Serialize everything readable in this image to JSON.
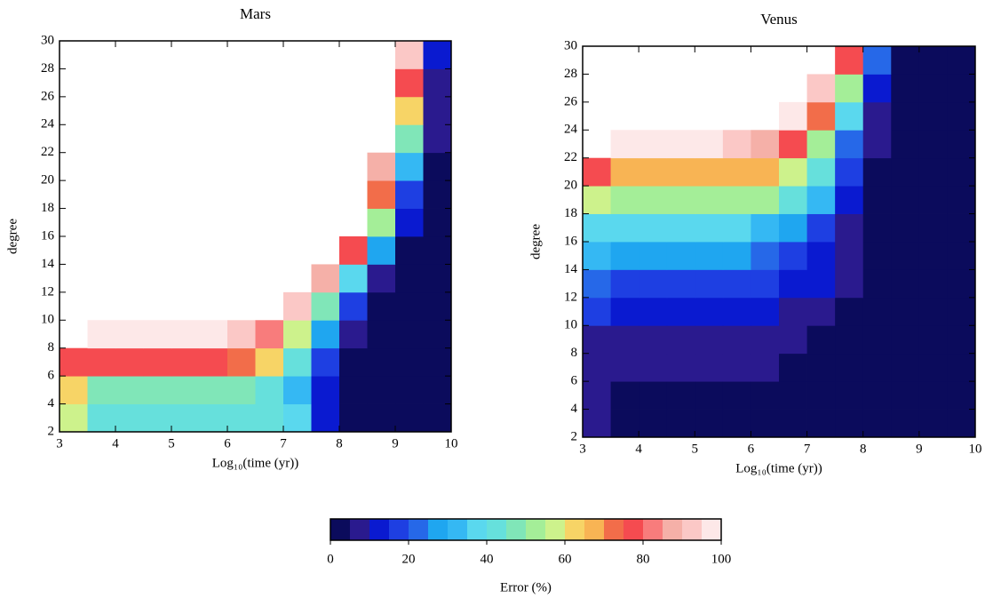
{
  "chart_data": [
    {
      "type": "heatmap",
      "title": "Mars",
      "xlabel": "Log₁₀(time (yr))",
      "ylabel": "degree",
      "x_edges": [
        3,
        3.5,
        4,
        4.5,
        5,
        5.5,
        6,
        6.5,
        7,
        7.5,
        8,
        8.5,
        9,
        9.5,
        10
      ],
      "y_edges": [
        2,
        4,
        6,
        8,
        10,
        12,
        14,
        16,
        18,
        20,
        22,
        24,
        26,
        28,
        30
      ],
      "values": [
        [
          55,
          42,
          42,
          42,
          42,
          42,
          42,
          40,
          35,
          12,
          3,
          3,
          3,
          3
        ],
        [
          62,
          48,
          48,
          48,
          48,
          48,
          48,
          44,
          30,
          10,
          3,
          3,
          3,
          3
        ],
        [
          78,
          75,
          75,
          75,
          75,
          75,
          72,
          60,
          42,
          18,
          4,
          3,
          3,
          3
        ],
        [
          null,
          97,
          97,
          97,
          97,
          97,
          92,
          82,
          55,
          28,
          8,
          3,
          3,
          3
        ],
        [
          null,
          null,
          null,
          null,
          null,
          null,
          null,
          null,
          90,
          48,
          18,
          4,
          3,
          3
        ],
        [
          null,
          null,
          null,
          null,
          null,
          null,
          null,
          null,
          null,
          85,
          38,
          9,
          3,
          3
        ],
        [
          null,
          null,
          null,
          null,
          null,
          null,
          null,
          null,
          null,
          null,
          75,
          25,
          4,
          3
        ],
        [
          null,
          null,
          null,
          null,
          null,
          null,
          null,
          null,
          null,
          null,
          null,
          50,
          10,
          3
        ],
        [
          null,
          null,
          null,
          null,
          null,
          null,
          null,
          null,
          null,
          null,
          null,
          70,
          18,
          3
        ],
        [
          null,
          null,
          null,
          null,
          null,
          null,
          null,
          null,
          null,
          null,
          null,
          88,
          30,
          4
        ],
        [
          null,
          null,
          null,
          null,
          null,
          null,
          null,
          null,
          null,
          null,
          null,
          null,
          45,
          5
        ],
        [
          null,
          null,
          null,
          null,
          null,
          null,
          null,
          null,
          null,
          null,
          null,
          null,
          60,
          6
        ],
        [
          null,
          null,
          null,
          null,
          null,
          null,
          null,
          null,
          null,
          null,
          null,
          null,
          78,
          9
        ],
        [
          null,
          null,
          null,
          null,
          null,
          null,
          null,
          null,
          null,
          null,
          null,
          null,
          92,
          14
        ]
      ],
      "xlim": [
        3,
        10
      ],
      "ylim": [
        2,
        30
      ],
      "xticks": [
        3,
        4,
        5,
        6,
        7,
        8,
        9,
        10
      ],
      "yticks": [
        2,
        4,
        6,
        8,
        10,
        12,
        14,
        16,
        18,
        20,
        22,
        24,
        26,
        28,
        30
      ]
    },
    {
      "type": "heatmap",
      "title": "Venus",
      "xlabel": "Log₁₀(time (yr))",
      "ylabel": "degree",
      "x_edges": [
        3,
        3.5,
        4,
        4.5,
        5,
        5.5,
        6,
        6.5,
        7,
        7.5,
        8,
        8.5,
        9,
        9.5,
        10
      ],
      "y_edges": [
        2,
        4,
        6,
        8,
        10,
        12,
        14,
        16,
        18,
        20,
        22,
        24,
        26,
        28,
        30
      ],
      "values": [
        [
          5,
          2,
          2,
          2,
          2,
          2,
          2,
          2,
          2,
          2,
          2,
          2,
          2,
          2
        ],
        [
          5,
          2,
          2,
          2,
          2,
          2,
          2,
          2,
          2,
          2,
          2,
          2,
          2,
          2
        ],
        [
          7,
          6,
          6,
          6,
          6,
          6,
          6,
          4,
          2,
          2,
          2,
          2,
          2,
          2
        ],
        [
          8,
          7,
          7,
          7,
          7,
          7,
          7,
          7,
          4,
          2,
          2,
          2,
          2,
          2
        ],
        [
          15,
          14,
          14,
          14,
          14,
          14,
          14,
          9,
          7,
          3,
          2,
          2,
          2,
          2
        ],
        [
          20,
          18,
          18,
          18,
          18,
          18,
          18,
          14,
          10,
          5,
          2,
          2,
          2,
          2
        ],
        [
          30,
          27,
          27,
          27,
          27,
          27,
          23,
          18,
          12,
          6,
          2,
          2,
          2,
          2
        ],
        [
          38,
          35,
          35,
          35,
          35,
          35,
          32,
          27,
          17,
          8,
          2,
          2,
          2,
          2
        ],
        [
          55,
          52,
          52,
          52,
          52,
          52,
          50,
          42,
          30,
          12,
          3,
          2,
          2,
          2
        ],
        [
          78,
          67,
          67,
          67,
          67,
          67,
          65,
          58,
          40,
          17,
          4,
          2,
          2,
          2
        ],
        [
          null,
          95,
          95,
          95,
          95,
          92,
          88,
          78,
          50,
          22,
          5,
          2,
          2,
          2
        ],
        [
          null,
          null,
          null,
          null,
          null,
          null,
          null,
          95,
          70,
          35,
          8,
          2,
          2,
          2
        ],
        [
          null,
          null,
          null,
          null,
          null,
          null,
          null,
          null,
          90,
          50,
          12,
          2,
          2,
          2
        ],
        [
          null,
          null,
          null,
          null,
          null,
          null,
          null,
          null,
          null,
          75,
          20,
          2,
          2,
          2
        ]
      ],
      "xlim": [
        3,
        10
      ],
      "ylim": [
        2,
        30
      ],
      "xticks": [
        3,
        4,
        5,
        6,
        7,
        8,
        9,
        10
      ],
      "yticks": [
        2,
        4,
        6,
        8,
        10,
        12,
        14,
        16,
        18,
        20,
        22,
        24,
        26,
        28,
        30
      ]
    }
  ],
  "colorbar": {
    "label": "Error (%)",
    "lim": [
      0,
      100
    ],
    "ticks": [
      0,
      20,
      40,
      60,
      80,
      100
    ],
    "colors": [
      "#0b0b5c",
      "#2a1a8e",
      "#0a1ad0",
      "#1e3fe2",
      "#2668e8",
      "#1fa6f0",
      "#35b8f3",
      "#5ad8ee",
      "#66e0dc",
      "#80e6b8",
      "#a4ee98",
      "#cdf28c",
      "#f7d466",
      "#f8b454",
      "#f26d4a",
      "#f54b50",
      "#f87c7c",
      "#f5b0a8",
      "#fbc8c6",
      "#fde8e8"
    ]
  }
}
